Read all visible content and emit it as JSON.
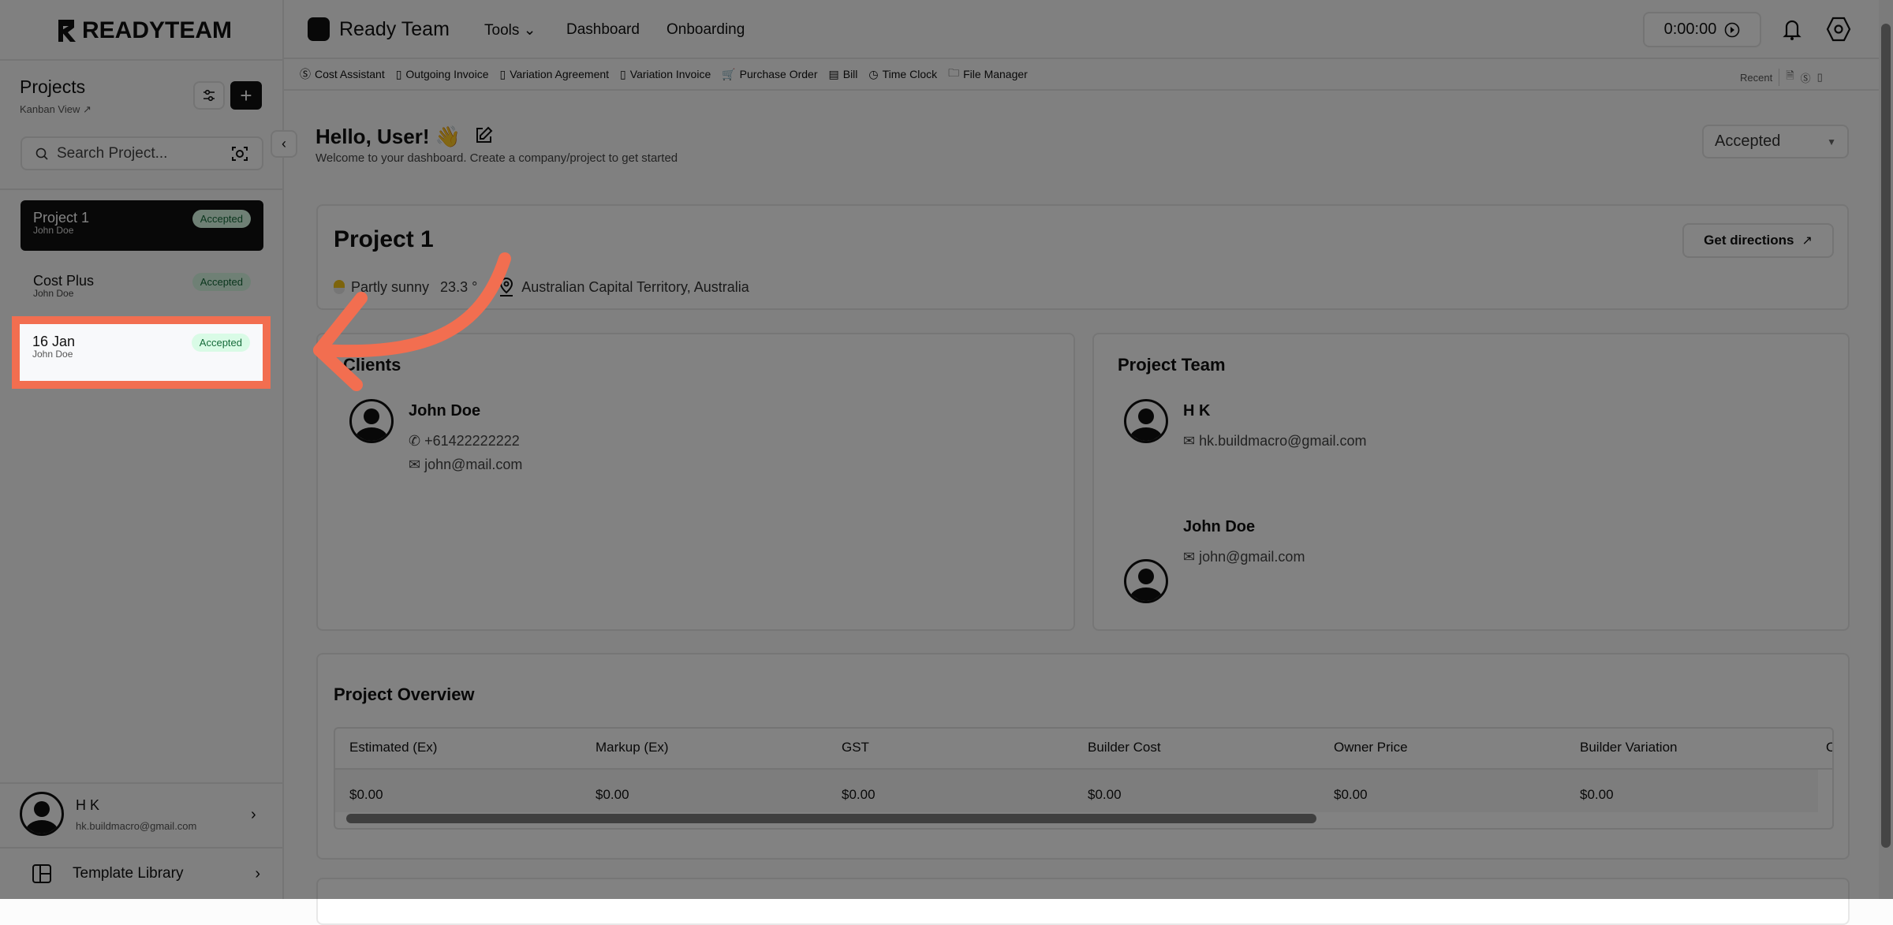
{
  "brand": {
    "logo": "READYTEAM"
  },
  "header": {
    "workspace": "Ready Team",
    "nav": [
      "Tools",
      "Dashboard",
      "Onboarding"
    ],
    "timer": "0:00:00"
  },
  "toolbar": {
    "items": [
      {
        "label": "Cost Assistant",
        "icon": "dollar-cycle-icon"
      },
      {
        "label": "Outgoing Invoice",
        "icon": "invoice-icon"
      },
      {
        "label": "Variation Agreement",
        "icon": "invoice-icon"
      },
      {
        "label": "Variation Invoice",
        "icon": "invoice-icon"
      },
      {
        "label": "Purchase Order",
        "icon": "cart-icon"
      },
      {
        "label": "Bill",
        "icon": "bill-icon"
      },
      {
        "label": "Time Clock",
        "icon": "clock-icon"
      },
      {
        "label": "File Manager",
        "icon": "folder-icon"
      }
    ],
    "recent_label": "Recent"
  },
  "sidebar": {
    "title": "Projects",
    "kanban": "Kanban View",
    "search_placeholder": "Search Project...",
    "projects": [
      {
        "name": "Project 1",
        "owner": "John Doe",
        "status": "Accepted"
      },
      {
        "name": "Cost Plus",
        "owner": "John Doe",
        "status": "Accepted"
      },
      {
        "name": "16 Jan",
        "owner": "John Doe",
        "status": "Accepted"
      }
    ],
    "user": {
      "name": "H K",
      "email": "hk.buildmacro@gmail.com"
    },
    "template_library": "Template Library"
  },
  "main": {
    "greeting": "Hello, User! 👋",
    "welcome": "Welcome to your dashboard. Create a company/project to get started",
    "status_filter": "Accepted",
    "project": {
      "title": "Project 1",
      "weather": "Partly sunny",
      "temp": "23.3 °",
      "location": "Australian Capital Territory, Australia",
      "directions": "Get directions"
    },
    "clients": {
      "title": "Clients",
      "people": [
        {
          "name": "John Doe",
          "phone": "+61422222222",
          "email": "john@mail.com"
        }
      ]
    },
    "team": {
      "title": "Project Team",
      "people": [
        {
          "name": "H K",
          "email": "hk.buildmacro@gmail.com"
        },
        {
          "name": "John Doe",
          "email": "john@gmail.com"
        }
      ]
    },
    "overview": {
      "title": "Project Overview",
      "columns": [
        "Estimated (Ex)",
        "Markup (Ex)",
        "GST",
        "Builder Cost",
        "Owner Price",
        "Builder Variation",
        "O"
      ],
      "values": [
        "$0.00",
        "$0.00",
        "$0.00",
        "$0.00",
        "$0.00",
        "$0.00",
        ""
      ]
    }
  },
  "colors": {
    "accent_arrow": "#f26e50",
    "badge_bg": "#d9fbe6",
    "badge_text": "#166b3a",
    "active_item": "#111111"
  }
}
